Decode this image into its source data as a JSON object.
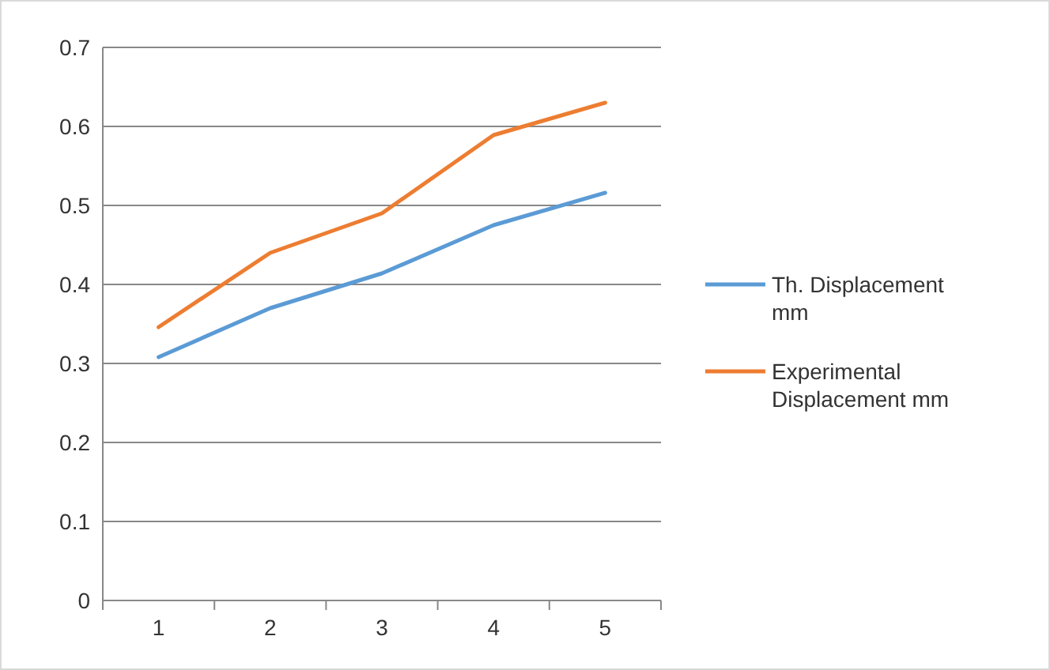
{
  "chart_data": {
    "type": "line",
    "categories": [
      "1",
      "2",
      "3",
      "4",
      "5"
    ],
    "series": [
      {
        "name": "Th. Displacement mm",
        "color": "#5b9bd5",
        "values": [
          0.308,
          0.37,
          0.414,
          0.475,
          0.516
        ]
      },
      {
        "name": "Experimental Displacement mm",
        "color": "#ed7d31",
        "values": [
          0.346,
          0.44,
          0.49,
          0.589,
          0.63
        ]
      }
    ],
    "ylim": [
      0,
      0.7
    ],
    "yticks": [
      {
        "value": 0,
        "label": "0"
      },
      0.1,
      0.2,
      0.3,
      0.4,
      0.5,
      0.6,
      0.7
    ],
    "grid": "y",
    "legend": "right",
    "marker": "none",
    "line_style": "solid"
  }
}
